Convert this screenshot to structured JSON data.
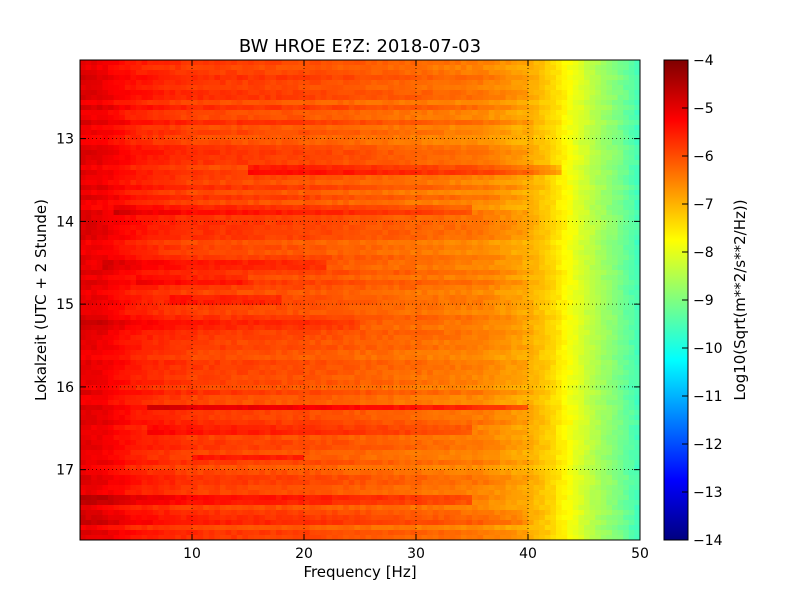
{
  "chart_data": {
    "type": "heatmap",
    "title": "BW HROE E?Z: 2018-07-03",
    "xlabel": "Frequency [Hz]",
    "ylabel": "Lokalzeit (UTC + 2 Stunde)",
    "xlim": [
      0,
      50
    ],
    "ylim": [
      17.85,
      12.05
    ],
    "x_ticks": [
      10,
      20,
      30,
      40,
      50
    ],
    "y_ticks": [
      13,
      14,
      15,
      16,
      17
    ],
    "grid": true,
    "colormap": "jet",
    "colorbar": {
      "label": "Log10(Sqrt(m**2/s**2/Hz))",
      "range": [
        -14,
        -4
      ],
      "ticks": [
        -4,
        -5,
        -6,
        -7,
        -8,
        -9,
        -10,
        -11,
        -12,
        -13,
        -14
      ]
    },
    "baseline_profile": {
      "frequency_hz": [
        0,
        2,
        5,
        10,
        20,
        30,
        36,
        40,
        42,
        44,
        46,
        48,
        50
      ],
      "log10_amplitude": [
        -5.0,
        -5.1,
        -5.5,
        -5.8,
        -6.0,
        -6.3,
        -6.5,
        -6.9,
        -7.3,
        -7.9,
        -8.5,
        -9.0,
        -9.6
      ]
    },
    "events": [
      {
        "time": 13.4,
        "f_range": [
          15,
          43
        ],
        "delta": 0.6
      },
      {
        "time": 13.85,
        "f_range": [
          3,
          35
        ],
        "delta": 0.4
      },
      {
        "time": 14.55,
        "f_range": [
          2,
          22
        ],
        "delta": 0.4
      },
      {
        "time": 14.7,
        "f_range": [
          5,
          15
        ],
        "delta": 0.3
      },
      {
        "time": 14.95,
        "f_range": [
          8,
          18
        ],
        "delta": 0.3
      },
      {
        "time": 15.25,
        "f_range": [
          0,
          25
        ],
        "delta": 0.3
      },
      {
        "time": 16.25,
        "f_range": [
          6,
          40
        ],
        "delta": 0.7
      },
      {
        "time": 16.5,
        "f_range": [
          6,
          35
        ],
        "delta": 0.4
      },
      {
        "time": 16.85,
        "f_range": [
          10,
          20
        ],
        "delta": 0.5
      },
      {
        "time": 17.35,
        "f_range": [
          0,
          35
        ],
        "delta": 0.5
      },
      {
        "time": 17.6,
        "f_range": [
          0,
          40
        ],
        "delta": 0.3
      }
    ]
  }
}
